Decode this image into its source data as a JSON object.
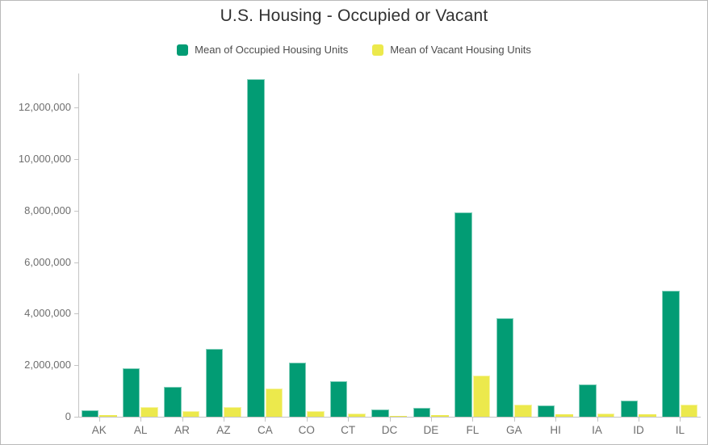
{
  "widget": {
    "title": "U.S. Housing - Occupied or Vacant"
  },
  "chart_data": {
    "type": "bar",
    "title": "U.S. Housing - Occupied or Vacant",
    "categories": [
      "AK",
      "AL",
      "AR",
      "AZ",
      "CA",
      "CO",
      "CT",
      "DC",
      "DE",
      "FL",
      "GA",
      "HI",
      "IA",
      "ID",
      "IL"
    ],
    "series": [
      {
        "name": "Mean of Occupied Housing Units",
        "color": "#029c74",
        "values": [
          250000,
          1880000,
          1160000,
          2630000,
          13100000,
          2100000,
          1380000,
          270000,
          350000,
          7930000,
          3820000,
          440000,
          1250000,
          630000,
          4890000
        ]
      },
      {
        "name": "Mean of Vacant Housing Units",
        "color": "#ece94c",
        "values": [
          70000,
          370000,
          210000,
          380000,
          1090000,
          220000,
          120000,
          30000,
          60000,
          1600000,
          480000,
          90000,
          140000,
          90000,
          460000
        ]
      }
    ],
    "xlabel": "",
    "ylabel": "",
    "ylim": [
      0,
      13320000
    ],
    "yticks": [
      0,
      2000000,
      4000000,
      6000000,
      8000000,
      10000000,
      12000000
    ],
    "ytick_labels": [
      "0",
      "2,000,000",
      "4,000,000",
      "6,000,000",
      "8,000,000",
      "10,000,000",
      "12,000,000"
    ],
    "grid": false,
    "legend_position": "top"
  },
  "colors": {
    "axis": "#c4c4c4",
    "tick_label": "#6e6e6e",
    "title": "#323232",
    "legend_text": "#4d4d4d",
    "border": "#b9b9b9"
  }
}
